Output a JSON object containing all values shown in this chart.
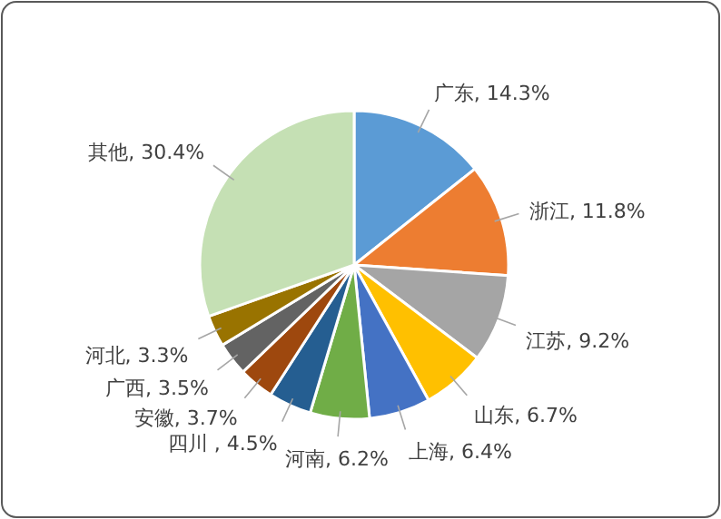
{
  "chart_data": {
    "type": "pie",
    "categories": [
      "广东",
      "浙江",
      "江苏",
      "山东",
      "上海",
      "河南",
      "四川 ",
      "安徽",
      "广西",
      "河北",
      "其他"
    ],
    "values": [
      14.3,
      11.8,
      9.2,
      6.7,
      6.4,
      6.2,
      4.5,
      3.7,
      3.5,
      3.3,
      30.4
    ],
    "value_labels": [
      "14.3%",
      "11.8%",
      "9.2%",
      "6.7%",
      "6.4%",
      "6.2%",
      "4.5%",
      "3.7%",
      "3.5%",
      "3.3%",
      "30.4%"
    ],
    "colors": [
      "#5b9bd5",
      "#ed7d31",
      "#a5a5a5",
      "#ffc000",
      "#4472c4",
      "#70ad47",
      "#255e91",
      "#9e480e",
      "#636363",
      "#997300",
      "#c5e0b4"
    ]
  }
}
